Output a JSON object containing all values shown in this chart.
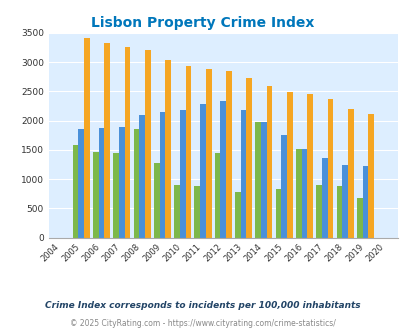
{
  "title": "Lisbon Property Crime Index",
  "years": [
    2004,
    2005,
    2006,
    2007,
    2008,
    2009,
    2010,
    2011,
    2012,
    2013,
    2014,
    2015,
    2016,
    2017,
    2018,
    2019,
    2020
  ],
  "lisbon": [
    0,
    1580,
    1470,
    1450,
    1850,
    1280,
    900,
    880,
    1450,
    775,
    1970,
    825,
    1520,
    900,
    875,
    685,
    0
  ],
  "new_hampshire": [
    0,
    1860,
    1870,
    1900,
    2090,
    2150,
    2190,
    2290,
    2340,
    2190,
    1970,
    1760,
    1510,
    1370,
    1250,
    1220,
    0
  ],
  "national": [
    0,
    3420,
    3330,
    3260,
    3210,
    3040,
    2940,
    2890,
    2850,
    2730,
    2590,
    2490,
    2460,
    2370,
    2200,
    2110,
    0
  ],
  "lisbon_color": "#7db84a",
  "nh_color": "#4a90d9",
  "national_color": "#f5a623",
  "bg_color": "#ddeeff",
  "ylabel_max": 3500,
  "ylabel_step": 500,
  "subtitle": "Crime Index corresponds to incidents per 100,000 inhabitants",
  "footer": "© 2025 CityRating.com - https://www.cityrating.com/crime-statistics/",
  "title_color": "#0077bb",
  "subtitle_color": "#224466",
  "footer_color": "#888888"
}
